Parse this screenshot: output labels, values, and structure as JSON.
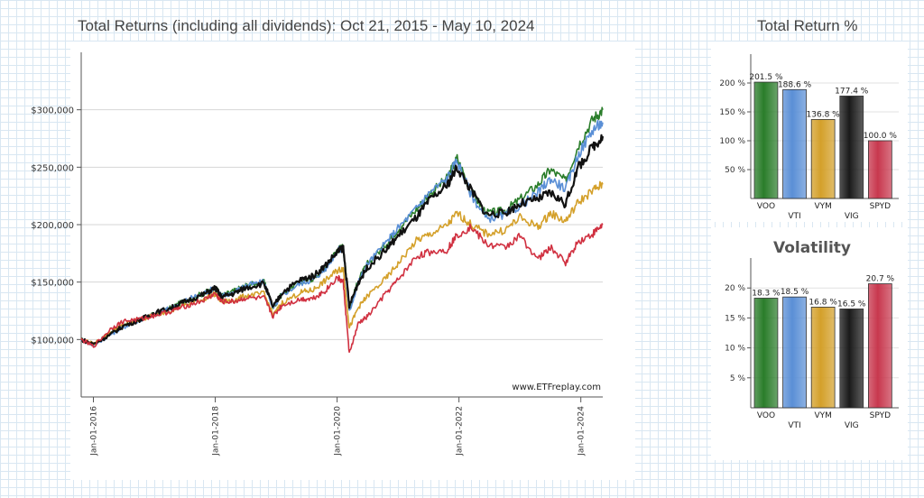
{
  "main_title": "Total Returns (including all dividends): Oct 21, 2015 - May 10, 2024",
  "side_title": "Total Return %",
  "chart_data": [
    {
      "type": "line",
      "title": "Total Returns (including all dividends): Oct 21, 2015 - May 10, 2024",
      "xlabel": "",
      "ylabel": "",
      "x_ticks": [
        "Jan-01-2016",
        "Jan-01-2018",
        "Jan-01-2020",
        "Jan-01-2022",
        "Jan-01-2024"
      ],
      "y_ticks": [
        "$100,000",
        "$150,000",
        "$200,000",
        "$250,000",
        "$300,000"
      ],
      "ylim": [
        50000,
        350000
      ],
      "watermark": "www.ETFreplay.com",
      "x_years": [
        2015.8,
        2016.0,
        2016.3,
        2016.5,
        2016.8,
        2017.0,
        2017.3,
        2017.5,
        2017.8,
        2018.0,
        2018.1,
        2018.3,
        2018.5,
        2018.8,
        2018.95,
        2019.1,
        2019.4,
        2019.6,
        2019.8,
        2020.0,
        2020.1,
        2020.2,
        2020.35,
        2020.5,
        2020.8,
        2021.0,
        2021.3,
        2021.5,
        2021.8,
        2021.97,
        2022.2,
        2022.45,
        2022.75,
        2023.0,
        2023.3,
        2023.5,
        2023.75,
        2023.95,
        2024.2,
        2024.36
      ],
      "series": [
        {
          "name": "VOO",
          "color": "#2a7d2a",
          "values": [
            100000,
            96000,
            106000,
            112000,
            118000,
            122000,
            128000,
            134000,
            140000,
            145000,
            138000,
            142000,
            147000,
            150000,
            128000,
            140000,
            150000,
            153000,
            162000,
            178000,
            181000,
            127000,
            152000,
            166000,
            183000,
            196000,
            213000,
            226000,
            240000,
            258000,
            229000,
            210000,
            212000,
            222000,
            235000,
            248000,
            238000,
            268000,
            292000,
            300000
          ]
        },
        {
          "name": "VTI",
          "color": "#5a8fd6",
          "values": [
            100000,
            95000,
            105000,
            111000,
            118000,
            122000,
            128000,
            134000,
            140000,
            145000,
            138000,
            141000,
            147000,
            150000,
            127000,
            139000,
            149000,
            152000,
            161000,
            177000,
            180000,
            124000,
            150000,
            166000,
            184000,
            197000,
            214000,
            227000,
            240000,
            256000,
            226000,
            205000,
            208000,
            216000,
            228000,
            240000,
            231000,
            260000,
            283000,
            289000
          ]
        },
        {
          "name": "VYM",
          "color": "#d4a02a",
          "values": [
            100000,
            96000,
            107000,
            113000,
            118000,
            121000,
            126000,
            130000,
            135000,
            140000,
            133000,
            134000,
            138000,
            140000,
            121000,
            132000,
            141000,
            143000,
            151000,
            160000,
            162000,
            110000,
            128000,
            138000,
            153000,
            166000,
            186000,
            191000,
            199000,
            210000,
            200000,
            192000,
            195000,
            206000,
            198000,
            210000,
            203000,
            219000,
            230000,
            235000
          ]
        },
        {
          "name": "VIG",
          "color": "#111111",
          "values": [
            100000,
            96000,
            105000,
            112000,
            118000,
            123000,
            128000,
            133000,
            139000,
            145000,
            137000,
            140000,
            145000,
            149000,
            128000,
            141000,
            152000,
            155000,
            164000,
            176000,
            180000,
            129000,
            150000,
            163000,
            178000,
            190000,
            206000,
            220000,
            234000,
            250000,
            230000,
            209000,
            210000,
            218000,
            222000,
            228000,
            218000,
            249000,
            268000,
            277000
          ]
        },
        {
          "name": "SPYD",
          "color": "#d03040",
          "values": [
            100000,
            94000,
            110000,
            116000,
            118000,
            121000,
            125000,
            129000,
            134000,
            140000,
            133000,
            133000,
            136000,
            136000,
            120000,
            130000,
            135000,
            136000,
            142000,
            154000,
            150000,
            88000,
            114000,
            120000,
            140000,
            152000,
            172000,
            176000,
            178000,
            191000,
            198000,
            183000,
            180000,
            190000,
            170000,
            180000,
            167000,
            185000,
            192000,
            200000
          ]
        }
      ]
    },
    {
      "type": "bar",
      "title": "Total Return %",
      "categories": [
        "VOO",
        "VTI",
        "VYM",
        "VIG",
        "SPYD"
      ],
      "values": [
        201.5,
        188.6,
        136.8,
        177.4,
        100.0
      ],
      "value_labels": [
        "201.5 %",
        "188.6 %",
        "136.8 %",
        "177.4 %",
        "100.0 %"
      ],
      "colors": [
        "#2a7d2a",
        "#5a8fd6",
        "#d4a02a",
        "#1a1a1a",
        "#c8384e"
      ],
      "y_ticks": [
        "50 %",
        "100 %",
        "150 %",
        "200 %"
      ],
      "ylim": [
        0,
        250
      ]
    },
    {
      "type": "bar",
      "title": "Volatility",
      "categories": [
        "VOO",
        "VTI",
        "VYM",
        "VIG",
        "SPYD"
      ],
      "values": [
        18.3,
        18.5,
        16.8,
        16.5,
        20.7
      ],
      "value_labels": [
        "18.3 %",
        "18.5 %",
        "16.8 %",
        "16.5 %",
        "20.7 %"
      ],
      "colors": [
        "#2a7d2a",
        "#5a8fd6",
        "#d4a02a",
        "#1a1a1a",
        "#c8384e"
      ],
      "y_ticks": [
        "5 %",
        "10 %",
        "15 %",
        "20 %"
      ],
      "ylim": [
        0,
        25
      ]
    }
  ]
}
